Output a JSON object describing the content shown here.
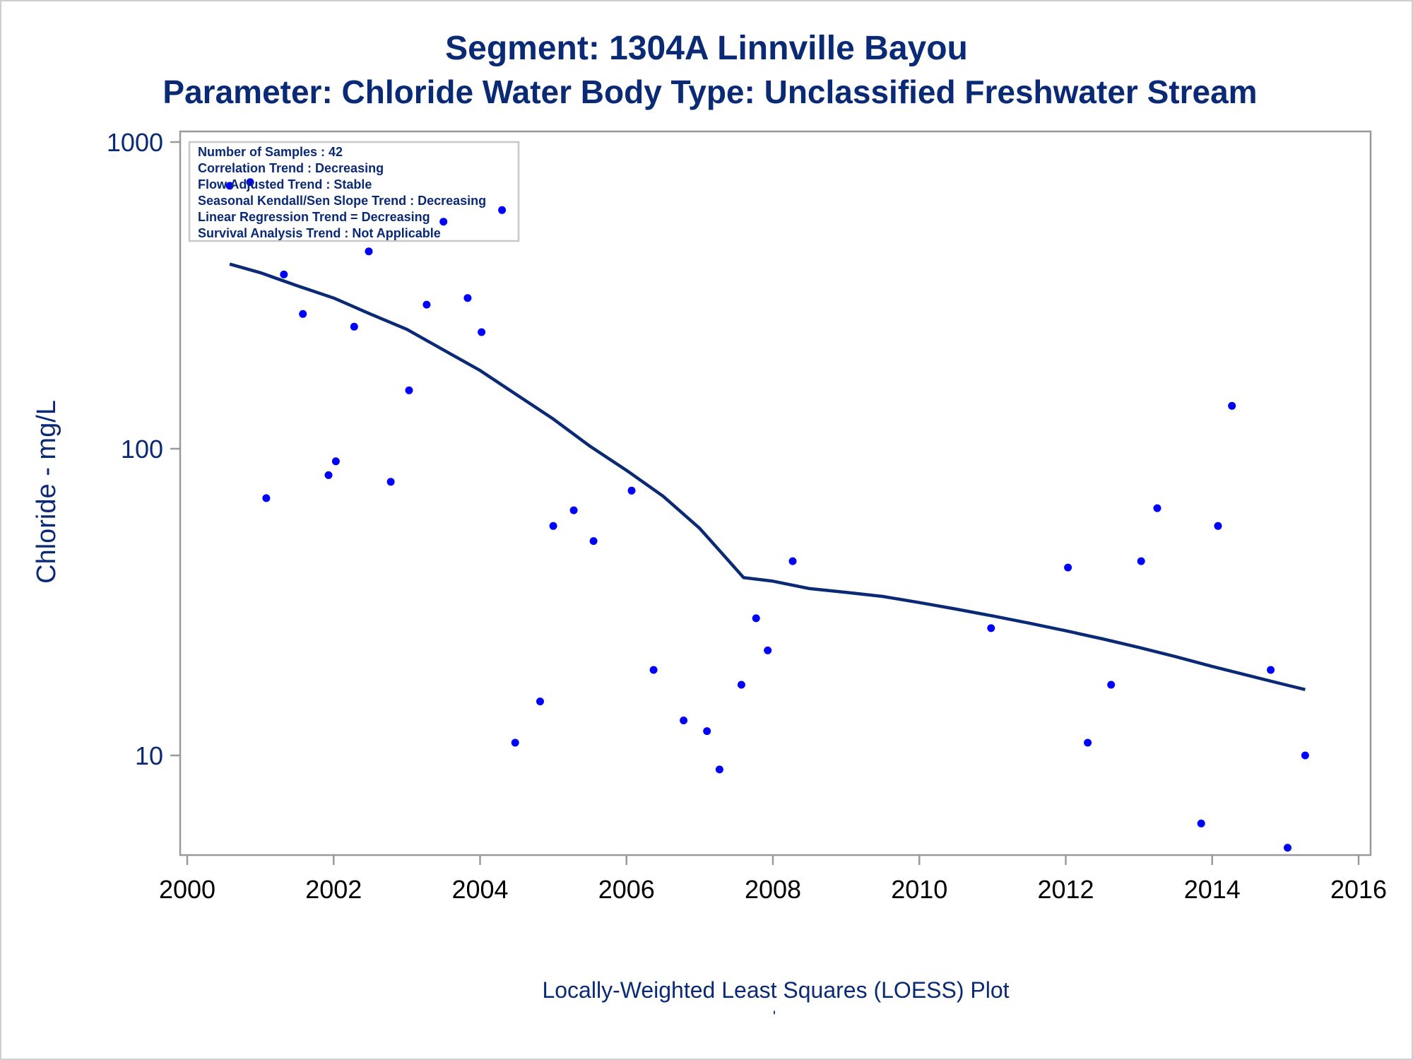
{
  "chart_data": {
    "type": "scatter",
    "title": "Segment: 1304A  Linnville Bayou",
    "subtitle": "Parameter: Chloride   Water Body Type: Unclassified Freshwater Stream",
    "xlabel": "Locally-Weighted Least Squares (LOESS) Plot",
    "ylabel": "Chloride - mg/L",
    "footnote": "'",
    "x_ticks": [
      "2000",
      "2002",
      "2004",
      "2006",
      "2008",
      "2010",
      "2012",
      "2014",
      "2016"
    ],
    "y_ticks": [
      "10",
      "100",
      "1000"
    ],
    "xlim": [
      2000,
      2016
    ],
    "ylim": [
      5,
      1000
    ],
    "y_scale": "log",
    "grid": false,
    "legend_position": "top-left",
    "legend": [
      "Number of Samples : 42",
      "Correlation Trend : Decreasing",
      "Flow Adjusted Trend : Stable",
      "Seasonal Kendall/Sen Slope Trend : Decreasing",
      "Linear Regression Trend = Decreasing",
      "Survival Analysis Trend : Not Applicable"
    ],
    "colors": {
      "points": "#0000ff",
      "line": "#0b2a75",
      "text": "#0b2a75",
      "frame": "#9a9a9a"
    },
    "series": [
      {
        "type": "scatter",
        "points": [
          [
            2000.58,
            720
          ],
          [
            2000.86,
            740
          ],
          [
            2001.08,
            69
          ],
          [
            2001.32,
            370
          ],
          [
            2001.58,
            275
          ],
          [
            2001.93,
            82
          ],
          [
            2002.03,
            91
          ],
          [
            2002.28,
            250
          ],
          [
            2002.48,
            440
          ],
          [
            2002.78,
            78
          ],
          [
            2003.03,
            155
          ],
          [
            2003.27,
            295
          ],
          [
            2003.5,
            550
          ],
          [
            2003.83,
            310
          ],
          [
            2004.02,
            240
          ],
          [
            2004.3,
            600
          ],
          [
            2004.48,
            11
          ],
          [
            2004.82,
            15
          ],
          [
            2005.0,
            56
          ],
          [
            2005.28,
            63
          ],
          [
            2005.55,
            50
          ],
          [
            2006.07,
            73
          ],
          [
            2006.37,
            19
          ],
          [
            2006.78,
            13
          ],
          [
            2007.1,
            12
          ],
          [
            2007.27,
            9
          ],
          [
            2007.57,
            17
          ],
          [
            2007.77,
            28
          ],
          [
            2007.93,
            22
          ],
          [
            2008.27,
            43
          ],
          [
            2010.98,
            26
          ],
          [
            2012.03,
            41
          ],
          [
            2012.3,
            11
          ],
          [
            2012.62,
            17
          ],
          [
            2013.03,
            43
          ],
          [
            2013.25,
            64
          ],
          [
            2013.85,
            6
          ],
          [
            2014.08,
            56
          ],
          [
            2014.27,
            138
          ],
          [
            2014.8,
            19
          ],
          [
            2015.03,
            5
          ],
          [
            2015.27,
            10
          ]
        ]
      },
      {
        "type": "line",
        "points": [
          [
            2000.58,
            400
          ],
          [
            2001.0,
            375
          ],
          [
            2001.5,
            340
          ],
          [
            2002.0,
            310
          ],
          [
            2002.5,
            275
          ],
          [
            2003.0,
            245
          ],
          [
            2003.5,
            210
          ],
          [
            2004.0,
            180
          ],
          [
            2004.5,
            150
          ],
          [
            2005.0,
            125
          ],
          [
            2005.5,
            102
          ],
          [
            2006.0,
            85
          ],
          [
            2006.5,
            70
          ],
          [
            2007.0,
            55
          ],
          [
            2007.4,
            43
          ],
          [
            2007.6,
            38
          ],
          [
            2008.0,
            37
          ],
          [
            2008.5,
            35
          ],
          [
            2009.0,
            34
          ],
          [
            2009.5,
            33
          ],
          [
            2010.0,
            31.5
          ],
          [
            2010.5,
            30
          ],
          [
            2011.0,
            28.5
          ],
          [
            2011.5,
            27
          ],
          [
            2012.0,
            25.5
          ],
          [
            2012.5,
            24
          ],
          [
            2013.0,
            22.5
          ],
          [
            2013.5,
            21
          ],
          [
            2014.0,
            19.5
          ],
          [
            2014.5,
            18.2
          ],
          [
            2015.0,
            17.0
          ],
          [
            2015.27,
            16.4
          ]
        ]
      }
    ]
  }
}
